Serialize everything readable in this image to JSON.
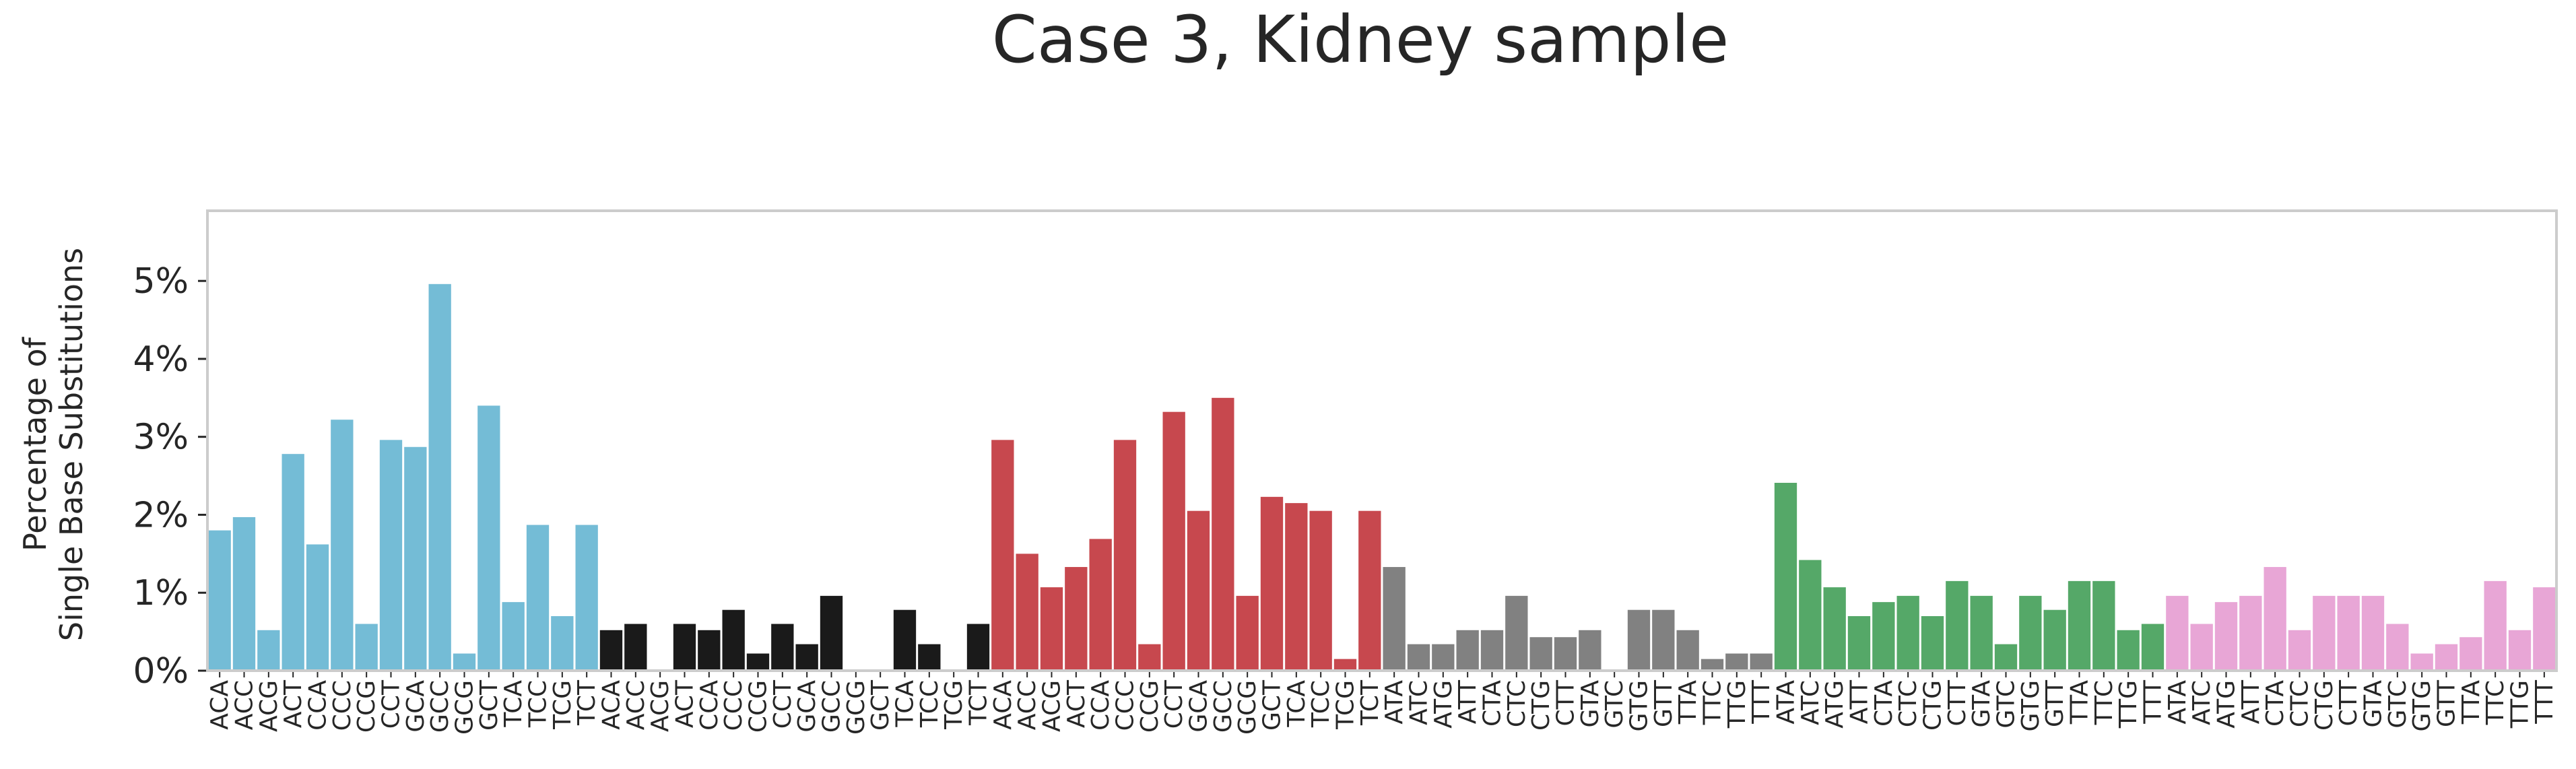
{
  "chart_data": {
    "type": "bar",
    "title": "Case 3, Kidney sample",
    "ylabel_lines": [
      "Percentage of",
      "Single Base Substitutions"
    ],
    "xlabel": "",
    "ylim": [
      0,
      5.9
    ],
    "y_ticks": [
      {
        "value": 0,
        "label": "0%"
      },
      {
        "value": 1,
        "label": "1%"
      },
      {
        "value": 2,
        "label": "2%"
      },
      {
        "value": 3,
        "label": "3%"
      },
      {
        "value": 4,
        "label": "4%"
      },
      {
        "value": 5,
        "label": "5%"
      }
    ],
    "grid": false,
    "categories": [
      "ACA",
      "ACC",
      "ACG",
      "ACT",
      "CCA",
      "CCC",
      "CCG",
      "CCT",
      "GCA",
      "GCC",
      "GCG",
      "GCT",
      "TCA",
      "TCC",
      "TCG",
      "TCT",
      "ACA",
      "ACC",
      "ACG",
      "ACT",
      "CCA",
      "CCC",
      "CCG",
      "CCT",
      "GCA",
      "GCC",
      "GCG",
      "GCT",
      "TCA",
      "TCC",
      "TCG",
      "TCT",
      "ACA",
      "ACC",
      "ACG",
      "ACT",
      "CCA",
      "CCC",
      "CCG",
      "CCT",
      "GCA",
      "GCC",
      "GCG",
      "GCT",
      "TCA",
      "TCC",
      "TCG",
      "TCT",
      "ATA",
      "ATC",
      "ATG",
      "ATT",
      "CTA",
      "CTC",
      "CTG",
      "CTT",
      "GTA",
      "GTC",
      "GTG",
      "GTT",
      "TTA",
      "TTC",
      "TTG",
      "TTT",
      "ATA",
      "ATC",
      "ATG",
      "ATT",
      "CTA",
      "CTC",
      "CTG",
      "CTT",
      "GTA",
      "GTC",
      "GTG",
      "GTT",
      "TTA",
      "TTC",
      "TTG",
      "TTT",
      "ATA",
      "ATC",
      "ATG",
      "ATT",
      "CTA",
      "CTC",
      "CTG",
      "CTT",
      "GTA",
      "GTC",
      "GTG",
      "GTT",
      "TTA",
      "TTC",
      "TTG",
      "TTT"
    ],
    "series_colors": [
      "#74bcd6",
      "#1a1a1a",
      "#c7484e",
      "#818181",
      "#55a868",
      "#e8a6d6"
    ],
    "values": [
      1.8,
      1.97,
      0.52,
      2.78,
      1.62,
      3.22,
      0.6,
      2.96,
      2.87,
      4.96,
      0.22,
      3.4,
      0.88,
      1.87,
      0.7,
      1.87,
      0.52,
      0.6,
      0.0,
      0.6,
      0.52,
      0.78,
      0.22,
      0.6,
      0.34,
      0.96,
      0.0,
      0.0,
      0.78,
      0.34,
      0.0,
      0.6,
      2.96,
      1.5,
      1.07,
      1.33,
      1.69,
      2.96,
      0.34,
      3.32,
      2.05,
      3.5,
      0.96,
      2.23,
      2.15,
      2.05,
      0.15,
      2.05,
      1.33,
      0.34,
      0.34,
      0.52,
      0.52,
      0.96,
      0.43,
      0.43,
      0.52,
      0.0,
      0.78,
      0.78,
      0.52,
      0.15,
      0.22,
      0.22,
      2.41,
      1.42,
      1.07,
      0.7,
      0.88,
      0.96,
      0.7,
      1.15,
      0.96,
      0.34,
      0.96,
      0.78,
      1.15,
      1.15,
      0.52,
      0.6,
      0.96,
      0.6,
      0.88,
      0.96,
      1.33,
      0.52,
      0.96,
      0.96,
      0.96,
      0.6,
      0.22,
      0.34,
      0.43,
      1.15,
      0.52,
      1.07
    ]
  }
}
